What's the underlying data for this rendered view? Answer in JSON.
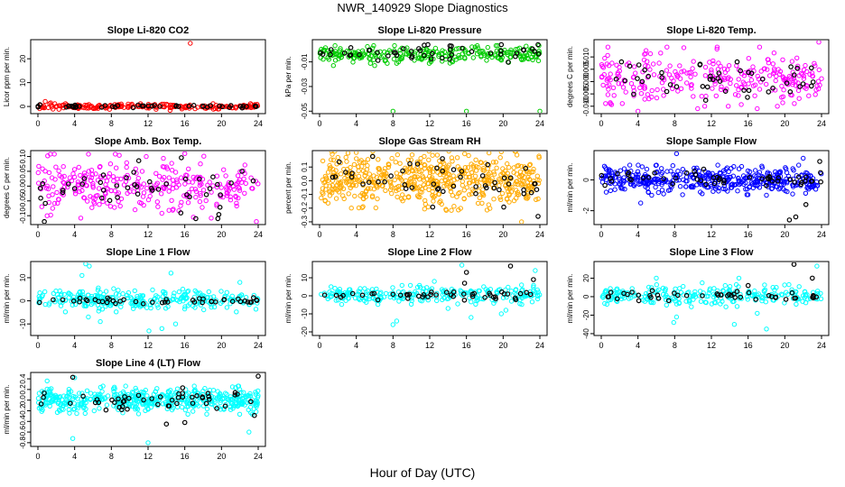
{
  "page": {
    "title": "NWR_140929  Slope Diagnostics",
    "xlabel": "Hour of Day (UTC)"
  },
  "chart_data": [
    {
      "type": "scatter",
      "title": "Slope Li-820 CO2",
      "ylabel": "Licor ppm per min.",
      "xlim": [
        0,
        24
      ],
      "x_ticks": [
        0,
        4,
        8,
        12,
        16,
        20,
        24
      ],
      "ylim": [
        -3,
        28
      ],
      "y_ticks": [
        0,
        10,
        20
      ],
      "y_tick_labels": [
        "0",
        "10",
        "20"
      ],
      "colors": {
        "main": "#ff0000",
        "reference": "#000000"
      },
      "main": {
        "center": 0,
        "spread": 0.5,
        "count": 220,
        "outliers": [
          [
            16.6,
            26.5
          ],
          [
            14.4,
            -1.6
          ],
          [
            7.8,
            -1.2
          ],
          [
            0.8,
            2.1
          ],
          [
            1.4,
            1.5
          ],
          [
            3.0,
            1.2
          ]
        ]
      },
      "reference": {
        "center": 0.1,
        "spread": 0.3,
        "count": 45,
        "outliers": []
      }
    },
    {
      "type": "scatter",
      "title": "Slope Li-820 Pressure",
      "ylabel": "kPa per min.",
      "xlim": [
        0,
        24
      ],
      "x_ticks": [
        0,
        4,
        8,
        12,
        16,
        20,
        24
      ],
      "ylim": [
        -0.052,
        0.008
      ],
      "y_ticks": [
        -0.05,
        -0.03,
        -0.01
      ],
      "y_tick_labels": [
        "-0.05",
        "-0.03",
        "-0.01"
      ],
      "colors": {
        "main": "#00cc00",
        "reference": "#000000"
      },
      "main": {
        "center": -0.004,
        "spread": 0.003,
        "count": 260,
        "outliers": [
          [
            8.0,
            -0.05
          ],
          [
            16.0,
            -0.05
          ],
          [
            24.0,
            -0.05
          ],
          [
            1.5,
            -0.013
          ],
          [
            6.0,
            -0.013
          ],
          [
            14.2,
            -0.011
          ]
        ]
      },
      "reference": {
        "center": -0.003,
        "spread": 0.003,
        "count": 45,
        "outliers": [
          [
            11.8,
            0.004
          ],
          [
            14.2,
            0.003
          ],
          [
            19.8,
            0.004
          ],
          [
            23.8,
            0.004
          ]
        ]
      }
    },
    {
      "type": "scatter",
      "title": "Slope Li-820 Temp.",
      "ylabel": "degrees C per min.",
      "xlim": [
        0,
        24
      ],
      "x_ticks": [
        0,
        4,
        8,
        12,
        16,
        20,
        24
      ],
      "ylim": [
        -0.013,
        0.017
      ],
      "y_ticks": [
        -0.01,
        -0.005,
        0,
        0.005,
        0.01
      ],
      "y_tick_labels": [
        "-0.010",
        "-0.005",
        "0.000",
        "0.005",
        "0.010"
      ],
      "colors": {
        "main": "#ff00ff",
        "reference": "#000000"
      },
      "main": {
        "center": 0.002,
        "spread": 0.005,
        "count": 280,
        "outliers": [
          [
            23.7,
            0.016
          ],
          [
            4.0,
            -0.012
          ],
          [
            10.5,
            -0.011
          ],
          [
            17.0,
            -0.011
          ],
          [
            1.0,
            -0.009
          ]
        ]
      },
      "reference": {
        "center": 0.0015,
        "spread": 0.004,
        "count": 45,
        "outliers": [
          [
            2.2,
            0.008
          ],
          [
            14.8,
            0.008
          ]
        ]
      }
    },
    {
      "type": "scatter",
      "title": "Slope Amb. Box Temp.",
      "ylabel": "degrees C per min.",
      "xlim": [
        0,
        24
      ],
      "x_ticks": [
        0,
        4,
        8,
        12,
        16,
        20,
        24
      ],
      "ylim": [
        -0.13,
        0.12
      ],
      "y_ticks": [
        -0.1,
        -0.05,
        0,
        0.05,
        0.1
      ],
      "y_tick_labels": [
        "-0.10",
        "-0.05",
        "0.00",
        "0.05",
        "0.10"
      ],
      "colors": {
        "main": "#ff00ff",
        "reference": "#000000"
      },
      "main": {
        "center": 0,
        "spread": 0.045,
        "count": 300,
        "outliers": [
          [
            16.0,
            0.11
          ],
          [
            23.8,
            -0.12
          ],
          [
            1.0,
            -0.1
          ],
          [
            11.8,
            0.1
          ]
        ]
      },
      "reference": {
        "center": 0,
        "spread": 0.04,
        "count": 45,
        "outliers": [
          [
            0.7,
            -0.12
          ],
          [
            17.2,
            -0.11
          ],
          [
            19.6,
            -0.11
          ]
        ]
      }
    },
    {
      "type": "scatter",
      "title": "Slope Gas Stream RH",
      "ylabel": "percent per min.",
      "xlim": [
        0,
        24
      ],
      "x_ticks": [
        0,
        4,
        8,
        12,
        16,
        20,
        24
      ],
      "ylim": [
        -0.32,
        0.22
      ],
      "y_ticks": [
        -0.3,
        -0.2,
        -0.1,
        0,
        0.1
      ],
      "y_tick_labels": [
        "-0.3",
        "-0.2",
        "-0.1",
        "0.0",
        "0.1"
      ],
      "colors": {
        "main": "#ffaa00",
        "reference": "#000000"
      },
      "main": {
        "center": 0,
        "spread": 0.09,
        "count": 560,
        "outliers": [
          [
            22.0,
            -0.3
          ],
          [
            23.9,
            0.18
          ],
          [
            2.0,
            0.17
          ]
        ]
      },
      "reference": {
        "center": 0,
        "spread": 0.08,
        "count": 50,
        "outliers": [
          [
            23.8,
            -0.26
          ]
        ]
      }
    },
    {
      "type": "scatter",
      "title": "Slope Sample Flow",
      "ylabel": "ml/min per min.",
      "xlim": [
        0,
        24
      ],
      "x_ticks": [
        0,
        4,
        8,
        12,
        16,
        20,
        24
      ],
      "ylim": [
        -2.9,
        1.9
      ],
      "y_ticks": [
        -2,
        0
      ],
      "y_tick_labels": [
        "-2",
        "0"
      ],
      "colors": {
        "main": "#0000ff",
        "reference": "#000000"
      },
      "main": {
        "center": 0,
        "spread": 0.4,
        "count": 420,
        "outliers": [
          [
            8.2,
            1.7
          ],
          [
            22.0,
            1.4
          ],
          [
            4.3,
            -1.5
          ],
          [
            5.5,
            -1.0
          ],
          [
            11.0,
            -0.9
          ],
          [
            18.0,
            -1.0
          ]
        ]
      },
      "reference": {
        "center": 0.1,
        "spread": 0.25,
        "count": 50,
        "outliers": [
          [
            20.5,
            -2.6
          ],
          [
            21.2,
            -2.4
          ],
          [
            22.3,
            -1.6
          ],
          [
            23.8,
            1.2
          ]
        ]
      }
    },
    {
      "type": "scatter",
      "title": "Slope Line 1 Flow",
      "ylabel": "ml/min per min.",
      "xlim": [
        0,
        24
      ],
      "x_ticks": [
        0,
        4,
        8,
        12,
        16,
        20,
        24
      ],
      "ylim": [
        -15,
        17
      ],
      "y_ticks": [
        -10,
        0,
        10
      ],
      "y_tick_labels": [
        "-10",
        "0",
        "10"
      ],
      "colors": {
        "main": "#00ffff",
        "reference": "#000000"
      },
      "main": {
        "center": 0.5,
        "spread": 2.2,
        "count": 280,
        "outliers": [
          [
            5.2,
            16
          ],
          [
            5.6,
            15
          ],
          [
            12.1,
            -13
          ],
          [
            13.5,
            -12
          ],
          [
            5.5,
            -7
          ],
          [
            6.8,
            -9
          ],
          [
            4.8,
            11
          ],
          [
            14.5,
            12
          ],
          [
            15.0,
            -10
          ],
          [
            22.0,
            8
          ]
        ]
      },
      "reference": {
        "center": 0,
        "spread": 0.6,
        "count": 45,
        "outliers": []
      }
    },
    {
      "type": "scatter",
      "title": "Slope Line 2 Flow",
      "ylabel": "ml/min per min.",
      "xlim": [
        0,
        24
      ],
      "x_ticks": [
        0,
        4,
        8,
        12,
        16,
        20,
        24
      ],
      "ylim": [
        -22,
        19
      ],
      "y_ticks": [
        -20,
        -10,
        0,
        10
      ],
      "y_tick_labels": [
        "-20",
        "-10",
        "0",
        "10"
      ],
      "colors": {
        "main": "#00ffff",
        "reference": "#000000"
      },
      "main": {
        "center": 0.5,
        "spread": 2.2,
        "count": 240,
        "outliers": [
          [
            15.5,
            17
          ],
          [
            8.0,
            -16
          ],
          [
            8.4,
            -14
          ],
          [
            16.5,
            -12
          ],
          [
            19.8,
            -10
          ],
          [
            20.3,
            -8
          ],
          [
            23.5,
            14
          ],
          [
            12.5,
            8
          ],
          [
            14.0,
            -7
          ],
          [
            22.0,
            6
          ]
        ]
      },
      "reference": {
        "center": 0.5,
        "spread": 1.2,
        "count": 45,
        "outliers": [
          [
            16.0,
            13
          ],
          [
            20.8,
            16.5
          ],
          [
            23.3,
            9
          ],
          [
            15.8,
            7
          ]
        ]
      }
    },
    {
      "type": "scatter",
      "title": "Slope Line 3 Flow",
      "ylabel": "ml/min per min.",
      "xlim": [
        0,
        24
      ],
      "x_ticks": [
        0,
        4,
        8,
        12,
        16,
        20,
        24
      ],
      "ylim": [
        -42,
        38
      ],
      "y_ticks": [
        -40,
        -20,
        0,
        20
      ],
      "y_tick_labels": [
        "-40",
        "-20",
        "0",
        "20"
      ],
      "colors": {
        "main": "#00ffff",
        "reference": "#000000"
      },
      "main": {
        "center": 1,
        "spread": 5,
        "count": 240,
        "outliers": [
          [
            7.9,
            -28
          ],
          [
            8.2,
            -22
          ],
          [
            14.5,
            -30
          ],
          [
            18.0,
            -35
          ],
          [
            17.0,
            -18
          ],
          [
            11.0,
            15
          ],
          [
            15.0,
            20
          ],
          [
            23.5,
            33
          ],
          [
            6.0,
            20
          ],
          [
            13.5,
            12
          ]
        ]
      },
      "reference": {
        "center": 1,
        "spread": 3,
        "count": 45,
        "outliers": [
          [
            21.0,
            35
          ],
          [
            23.0,
            20
          ],
          [
            16.0,
            12
          ]
        ]
      }
    },
    {
      "type": "scatter",
      "title": "Slope Line 4 (LT) Flow",
      "ylabel": "ml/min per min.",
      "xlim": [
        0,
        24
      ],
      "x_ticks": [
        0,
        4,
        8,
        12,
        16,
        20,
        24
      ],
      "ylim": [
        -0.87,
        0.52
      ],
      "y_ticks": [
        -0.8,
        -0.6,
        -0.4,
        -0.2,
        0,
        0.2,
        0.4
      ],
      "y_tick_labels": [
        "-0.8",
        "-0.6",
        "-0.4",
        "-0.2",
        "0.0",
        "0.2",
        "0.4"
      ],
      "colors": {
        "main": "#00ffff",
        "reference": "#000000"
      },
      "main": {
        "center": 0,
        "spread": 0.11,
        "count": 480,
        "outliers": [
          [
            3.8,
            -0.72
          ],
          [
            12.0,
            -0.8
          ],
          [
            23.0,
            -0.6
          ],
          [
            4.0,
            0.42
          ],
          [
            1.0,
            0.36
          ]
        ]
      },
      "reference": {
        "center": 0,
        "spread": 0.12,
        "count": 50,
        "outliers": [
          [
            3.8,
            0.43
          ],
          [
            24.0,
            0.45
          ],
          [
            14.0,
            -0.45
          ],
          [
            16.0,
            -0.42
          ]
        ]
      }
    }
  ]
}
